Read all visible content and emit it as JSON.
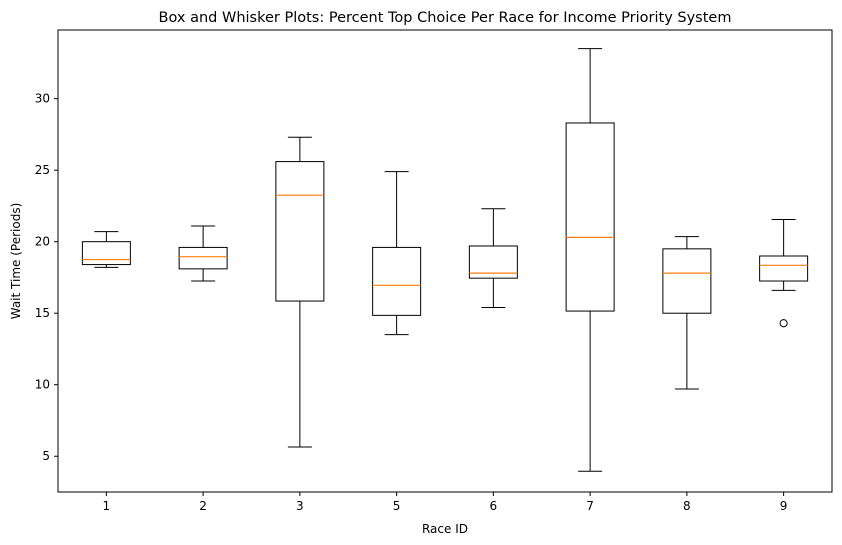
{
  "chart_data": {
    "type": "box",
    "title": "Box and Whisker Plots: Percent Top Choice Per Race for Income Priority System",
    "xlabel": "Race ID",
    "ylabel": "Wait Time (Periods)",
    "categories": [
      "1",
      "2",
      "3",
      "5",
      "6",
      "7",
      "8",
      "9"
    ],
    "yticks": [
      5,
      10,
      15,
      20,
      25,
      30
    ],
    "ylim": [
      2.5,
      34.8
    ],
    "grid": false,
    "legend": "none",
    "boxes": [
      {
        "category": "1",
        "whisker_low": 18.2,
        "q1": 18.4,
        "median": 18.75,
        "q3": 20.0,
        "whisker_high": 20.7,
        "outliers": []
      },
      {
        "category": "2",
        "whisker_low": 17.25,
        "q1": 18.1,
        "median": 18.95,
        "q3": 19.6,
        "whisker_high": 21.1,
        "outliers": []
      },
      {
        "category": "3",
        "whisker_low": 5.65,
        "q1": 15.85,
        "median": 23.25,
        "q3": 25.6,
        "whisker_high": 27.3,
        "outliers": []
      },
      {
        "category": "5",
        "whisker_low": 13.5,
        "q1": 14.85,
        "median": 16.95,
        "q3": 19.6,
        "whisker_high": 24.9,
        "outliers": []
      },
      {
        "category": "6",
        "whisker_low": 15.4,
        "q1": 17.45,
        "median": 17.8,
        "q3": 19.7,
        "whisker_high": 22.3,
        "outliers": []
      },
      {
        "category": "7",
        "whisker_low": 3.95,
        "q1": 15.15,
        "median": 20.3,
        "q3": 28.3,
        "whisker_high": 33.5,
        "outliers": []
      },
      {
        "category": "8",
        "whisker_low": 9.7,
        "q1": 15.0,
        "median": 17.8,
        "q3": 19.5,
        "whisker_high": 20.35,
        "outliers": []
      },
      {
        "category": "9",
        "whisker_low": 16.6,
        "q1": 17.25,
        "median": 18.35,
        "q3": 19.0,
        "whisker_high": 21.55,
        "outliers": [
          14.3
        ]
      }
    ],
    "colors": {
      "box": "#000000",
      "median": "#ff7f0e",
      "outlier": "#000000"
    }
  }
}
